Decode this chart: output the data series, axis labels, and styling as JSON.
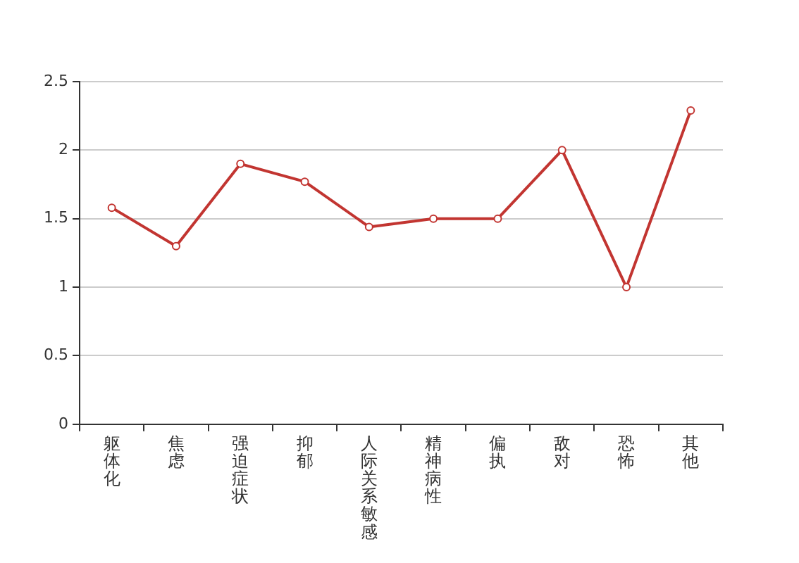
{
  "chart_data": {
    "type": "line",
    "categories": [
      "躯体化",
      "焦虑",
      "强迫症状",
      "抑郁",
      "人际关系敏感",
      "精神病性",
      "偏执",
      "敌对",
      "恐怖",
      "其他"
    ],
    "series": [
      {
        "color": "#c23531",
        "values": [
          1.58,
          1.3,
          1.9,
          1.77,
          1.44,
          1.5,
          1.5,
          2.0,
          1.0,
          2.29
        ]
      }
    ],
    "ylim": [
      0,
      2.5
    ],
    "yticks": [
      0,
      0.5,
      1,
      1.5,
      2,
      2.5
    ],
    "grid": "y",
    "marker": "circle",
    "legend": false
  }
}
